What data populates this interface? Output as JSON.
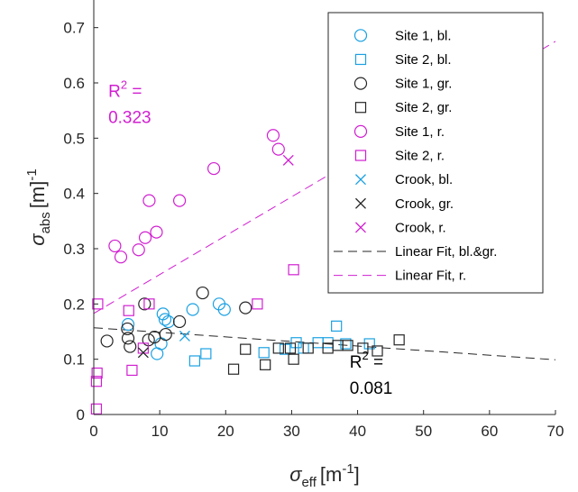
{
  "chart_data": {
    "type": "scatter",
    "xlabel": {
      "symbol": "σ",
      "sub": "eff",
      "unit": "[m",
      "unit_sup": "-1",
      "unit_end": "]"
    },
    "ylabel": {
      "symbol": "σ",
      "sub": "abs",
      "unit": "[m]",
      "unit_sup": "-1"
    },
    "xlim": [
      0,
      70
    ],
    "ylim": [
      0,
      0.75
    ],
    "xticks": [
      0,
      10,
      20,
      30,
      40,
      50,
      60,
      70
    ],
    "xtick_labels": [
      "0",
      "10",
      "20",
      "30",
      "40",
      "50",
      "60",
      "70"
    ],
    "yticks": [
      0,
      0.1,
      0.2,
      0.3,
      0.4,
      0.5,
      0.6,
      0.7
    ],
    "ytick_labels": [
      "0",
      "0.1",
      "0.2",
      "0.3",
      "0.4",
      "0.5",
      "0.6",
      "0.7"
    ],
    "grid": false,
    "legend_position": "top-right",
    "colors": {
      "blue": "#1ba1e2",
      "black": "#262626",
      "magenta": "#d11fd1"
    },
    "series": [
      {
        "name": "Site 1, bl.",
        "marker": "circle",
        "color": "#1ba1e2",
        "points": [
          [
            5.2,
            0.163
          ],
          [
            9.6,
            0.11
          ],
          [
            10.2,
            0.128
          ],
          [
            10.5,
            0.182
          ],
          [
            10.8,
            0.172
          ],
          [
            11.3,
            0.168
          ],
          [
            15,
            0.19
          ],
          [
            19,
            0.2
          ],
          [
            19.8,
            0.19
          ]
        ]
      },
      {
        "name": "Site 2, bl.",
        "marker": "square",
        "color": "#1ba1e2",
        "points": [
          [
            15.3,
            0.097
          ],
          [
            17,
            0.11
          ],
          [
            25.8,
            0.112
          ],
          [
            29,
            0.118
          ],
          [
            30.7,
            0.13
          ],
          [
            31.8,
            0.12
          ],
          [
            34,
            0.13
          ],
          [
            35.5,
            0.13
          ],
          [
            36.8,
            0.16
          ],
          [
            38.2,
            0.128
          ],
          [
            41.8,
            0.128
          ]
        ]
      },
      {
        "name": "Site 1, gr.",
        "marker": "circle",
        "color": "#262626",
        "points": [
          [
            2,
            0.133
          ],
          [
            5.1,
            0.155
          ],
          [
            5.2,
            0.138
          ],
          [
            5.5,
            0.123
          ],
          [
            7.7,
            0.2
          ],
          [
            8.3,
            0.135
          ],
          [
            9.2,
            0.14
          ],
          [
            10.9,
            0.145
          ],
          [
            13,
            0.168
          ],
          [
            16.5,
            0.22
          ],
          [
            23,
            0.193
          ]
        ]
      },
      {
        "name": "Site 2, gr.",
        "marker": "square",
        "color": "#262626",
        "points": [
          [
            21.2,
            0.082
          ],
          [
            23,
            0.118
          ],
          [
            26,
            0.09
          ],
          [
            28,
            0.12
          ],
          [
            29.8,
            0.12
          ],
          [
            30.3,
            0.1
          ],
          [
            32.5,
            0.12
          ],
          [
            35.5,
            0.12
          ],
          [
            37,
            0.125
          ],
          [
            38.5,
            0.125
          ],
          [
            40.8,
            0.12
          ],
          [
            43,
            0.115
          ],
          [
            46.3,
            0.135
          ]
        ]
      },
      {
        "name": "Site 1, r.",
        "marker": "circle",
        "color": "#d11fd1",
        "points": [
          [
            3.2,
            0.305
          ],
          [
            4.1,
            0.285
          ],
          [
            6.8,
            0.298
          ],
          [
            7.8,
            0.32
          ],
          [
            8.4,
            0.387
          ],
          [
            9.5,
            0.33
          ],
          [
            13,
            0.387
          ],
          [
            18.2,
            0.445
          ],
          [
            27.2,
            0.505
          ],
          [
            28,
            0.48
          ]
        ]
      },
      {
        "name": "Site 2, r.",
        "marker": "square",
        "color": "#d11fd1",
        "points": [
          [
            0.4,
            0.01
          ],
          [
            0.4,
            0.06
          ],
          [
            0.5,
            0.075
          ],
          [
            0.6,
            0.2
          ],
          [
            5.3,
            0.188
          ],
          [
            5.8,
            0.08
          ],
          [
            7.5,
            0.12
          ],
          [
            8.4,
            0.2
          ],
          [
            24.8,
            0.2
          ],
          [
            30.3,
            0.262
          ]
        ]
      },
      {
        "name": "Crook, bl.",
        "marker": "x",
        "color": "#1ba1e2",
        "points": [
          [
            13.8,
            0.142
          ]
        ]
      },
      {
        "name": "Crook, gr.",
        "marker": "x",
        "color": "#262626",
        "points": [
          [
            7.5,
            0.112
          ]
        ]
      },
      {
        "name": "Crook, r.",
        "marker": "x",
        "color": "#d11fd1",
        "points": [
          [
            29.5,
            0.46
          ]
        ]
      }
    ],
    "fits": [
      {
        "name": "Linear Fit, bl.&gr.",
        "color": "#262626",
        "intercept": 0.157,
        "slope": -0.000828
      },
      {
        "name": "Linear Fit, r.",
        "color": "#d11fd1",
        "intercept": 0.183,
        "slope": 0.00703
      }
    ],
    "annotations": [
      {
        "name": "r2-red",
        "lines": [
          "R",
          "0.323"
        ],
        "sup": "2",
        "eq": " =",
        "color": "#d11fd1",
        "at": [
          2.2,
          0.575
        ]
      },
      {
        "name": "r2-black",
        "lines": [
          "R",
          "0.081"
        ],
        "sup": "2",
        "eq": " =",
        "color": "#000000",
        "at": [
          38.8,
          0.085
        ]
      }
    ]
  }
}
